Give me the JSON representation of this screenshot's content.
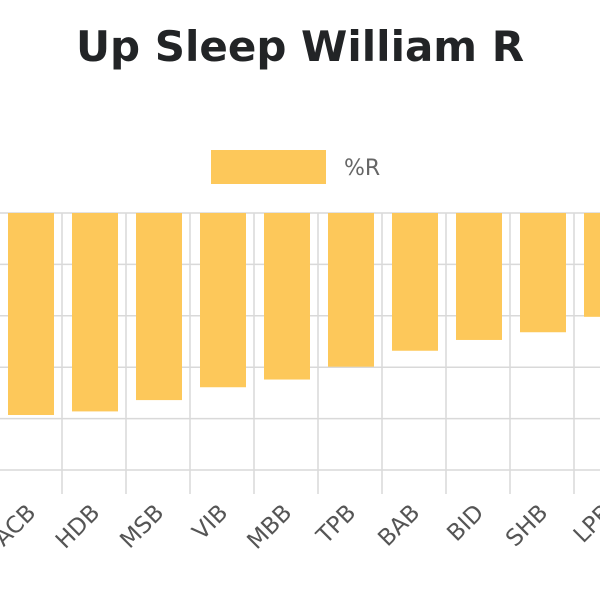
{
  "chart_data": {
    "type": "bar",
    "title": "Up Sleep William R",
    "categories": [
      "ACB",
      "HDB",
      "MSB",
      "VIB",
      "MBB",
      "TPB",
      "BAB",
      "BID",
      "SHB",
      "LPB"
    ],
    "series": [
      {
        "name": "%R",
        "color": "#fdc85a",
        "values": [
          -39.3,
          -38.6,
          -36.4,
          -33.9,
          -32.4,
          -29.9,
          -26.8,
          -24.7,
          -23.2,
          -20.2
        ]
      }
    ],
    "xlabel": "",
    "ylabel": "",
    "ylim": [
      -50,
      0
    ],
    "yticks": [
      0,
      -10,
      -20,
      -30,
      -40,
      -50
    ],
    "grid": true,
    "legend_position": "top-center"
  }
}
